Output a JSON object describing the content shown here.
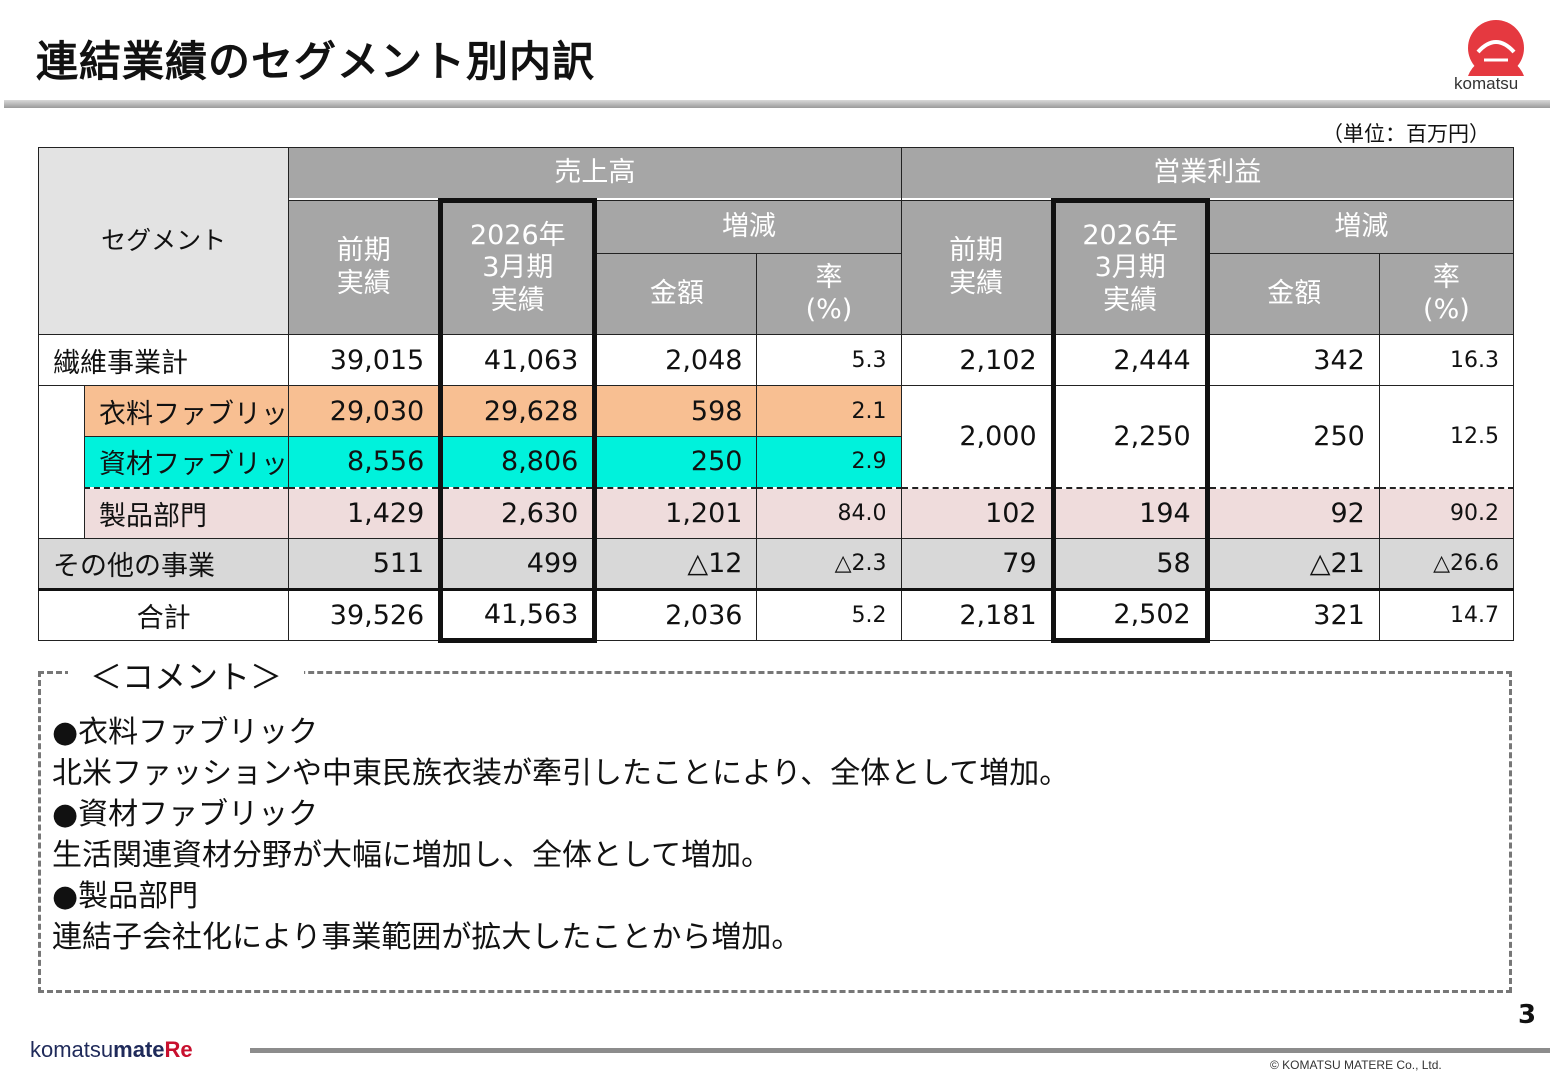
{
  "page": {
    "title": "連結業績のセグメント別内訳",
    "unit": "（単位：百万円）",
    "page_number": "3",
    "copyright": "©  KOMATSU MATERE Co., Ltd."
  },
  "logo": {
    "brand_text": "komatsu",
    "footer_part1": "komatsu",
    "footer_part2": "mate",
    "footer_part3": "Re",
    "mark_color": "#e53940"
  },
  "table": {
    "segment_header": "セグメント",
    "groups": [
      "売上高",
      "営業利益"
    ],
    "col_prev": [
      "前期",
      "実績"
    ],
    "col_cur": [
      "2026年",
      "3月期",
      "実績"
    ],
    "col_change": "増減",
    "col_amount": "金額",
    "col_rate": [
      "率",
      "(%)"
    ],
    "rows": [
      {
        "label": "繊維事業計",
        "values": [
          "39,015",
          "41,063",
          "2,048",
          "5.3",
          "2,102",
          "2,444",
          "342",
          "16.3"
        ]
      },
      {
        "label": "衣料ファブリック",
        "values": [
          "29,030",
          "29,628",
          "598",
          "2.1"
        ]
      },
      {
        "label": "資材ファブリック",
        "values": [
          "8,556",
          "8,806",
          "250",
          "2.9"
        ]
      },
      {
        "label": "製品部門",
        "values": [
          "1,429",
          "2,630",
          "1,201",
          "84.0",
          "102",
          "194",
          "92",
          "90.2"
        ]
      },
      {
        "label": "その他の事業",
        "values": [
          "511",
          "499",
          "△12",
          "△2.3",
          "79",
          "58",
          "△21",
          "△26.6"
        ]
      },
      {
        "label": "合計",
        "values": [
          "39,526",
          "41,563",
          "2,036",
          "5.2",
          "2,181",
          "2,502",
          "321",
          "14.7"
        ]
      }
    ],
    "fabric_combined_op": [
      "2,000",
      "2,250",
      "250",
      "12.5"
    ],
    "colors": {
      "header": "#a6a6a6",
      "apparel": "#f8bf92",
      "material": "#00f2dc",
      "products": "#efdcdc",
      "other": "#d8d8d8"
    }
  },
  "comment": {
    "title": "＜コメント＞",
    "lines": [
      "●衣料ファブリック",
      "北米ファッションや中東民族衣装が牽引したことにより、全体として増加。",
      "●資材ファブリック",
      "生活関連資材分野が大幅に増加し、全体として増加。",
      "●製品部門",
      "連結子会社化により事業範囲が拡大したことから増加。"
    ]
  }
}
